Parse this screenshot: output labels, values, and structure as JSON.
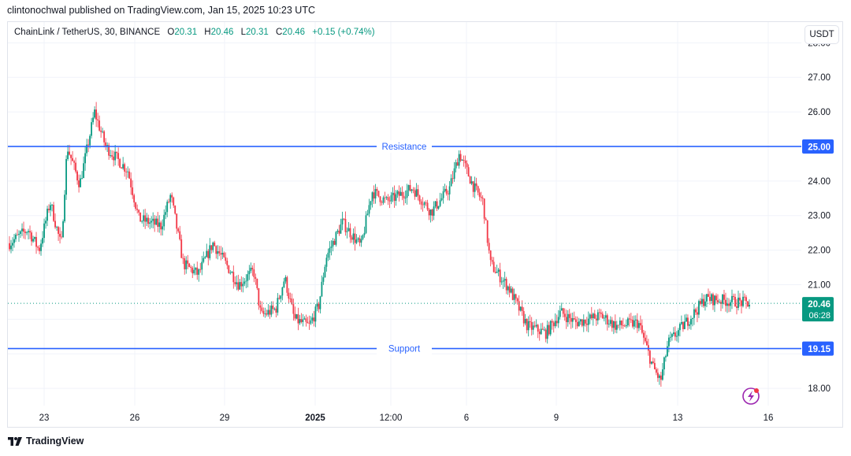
{
  "header": {
    "published": "clintonochwal published on TradingView.com, Jan 15, 2025 10:23 UTC"
  },
  "legend": {
    "symbol": "ChainLink / TetherUS, 30, BINANCE",
    "o_label": "O",
    "o": "20.31",
    "h_label": "H",
    "h": "20.46",
    "l_label": "L",
    "l": "20.31",
    "c_label": "C",
    "c": "20.46",
    "change": "+0.15 (+0.74%)"
  },
  "currency_button": "USDT",
  "footer": {
    "brand": "TradingView"
  },
  "colors": {
    "up": "#089981",
    "down": "#f23645",
    "level_line": "#2962ff",
    "price_badge": "#089981"
  },
  "chart_data": {
    "type": "candlestick",
    "ylim": [
      17.5,
      28.6
    ],
    "y_ticks": [
      "28.00",
      "27.00",
      "26.00",
      "24.00",
      "23.00",
      "22.00",
      "21.00",
      "18.00"
    ],
    "x_tick_labels": [
      "23",
      "26",
      "29",
      "2025",
      "12:00",
      "6",
      "9",
      "13",
      "16"
    ],
    "horizontal_levels": [
      {
        "label": "Resistance",
        "value": 25.0,
        "badge": "25.00"
      },
      {
        "label": "Support",
        "value": 19.15,
        "badge": "19.15"
      }
    ],
    "last_price": {
      "value": 20.46,
      "label": "20.46",
      "countdown": "06:28"
    },
    "price_path": [
      [
        0,
        22.2
      ],
      [
        0.025,
        22.6
      ],
      [
        0.04,
        22.0
      ],
      [
        0.055,
        23.4
      ],
      [
        0.07,
        22.1
      ],
      [
        0.078,
        25.0
      ],
      [
        0.095,
        23.9
      ],
      [
        0.115,
        26.0
      ],
      [
        0.13,
        25.0
      ],
      [
        0.16,
        24.3
      ],
      [
        0.175,
        22.9
      ],
      [
        0.205,
        22.7
      ],
      [
        0.218,
        23.6
      ],
      [
        0.235,
        21.6
      ],
      [
        0.255,
        21.3
      ],
      [
        0.275,
        22.2
      ],
      [
        0.31,
        21.0
      ],
      [
        0.33,
        21.4
      ],
      [
        0.34,
        20.1
      ],
      [
        0.36,
        20.3
      ],
      [
        0.372,
        21.2
      ],
      [
        0.385,
        20.0
      ],
      [
        0.405,
        19.8
      ],
      [
        0.418,
        20.4
      ],
      [
        0.428,
        21.8
      ],
      [
        0.45,
        22.8
      ],
      [
        0.475,
        22.1
      ],
      [
        0.49,
        23.7
      ],
      [
        0.51,
        23.4
      ],
      [
        0.545,
        23.8
      ],
      [
        0.57,
        23.1
      ],
      [
        0.595,
        23.8
      ],
      [
        0.608,
        24.8
      ],
      [
        0.628,
        23.8
      ],
      [
        0.64,
        23.4
      ],
      [
        0.65,
        21.6
      ],
      [
        0.675,
        20.9
      ],
      [
        0.7,
        19.8
      ],
      [
        0.725,
        19.6
      ],
      [
        0.745,
        20.2
      ],
      [
        0.765,
        19.9
      ],
      [
        0.8,
        20.1
      ],
      [
        0.82,
        19.8
      ],
      [
        0.85,
        19.9
      ],
      [
        0.87,
        18.6
      ],
      [
        0.88,
        18.2
      ],
      [
        0.89,
        19.3
      ],
      [
        0.91,
        19.8
      ],
      [
        0.93,
        20.3
      ],
      [
        0.94,
        20.6
      ],
      [
        1.0,
        20.46
      ]
    ]
  }
}
